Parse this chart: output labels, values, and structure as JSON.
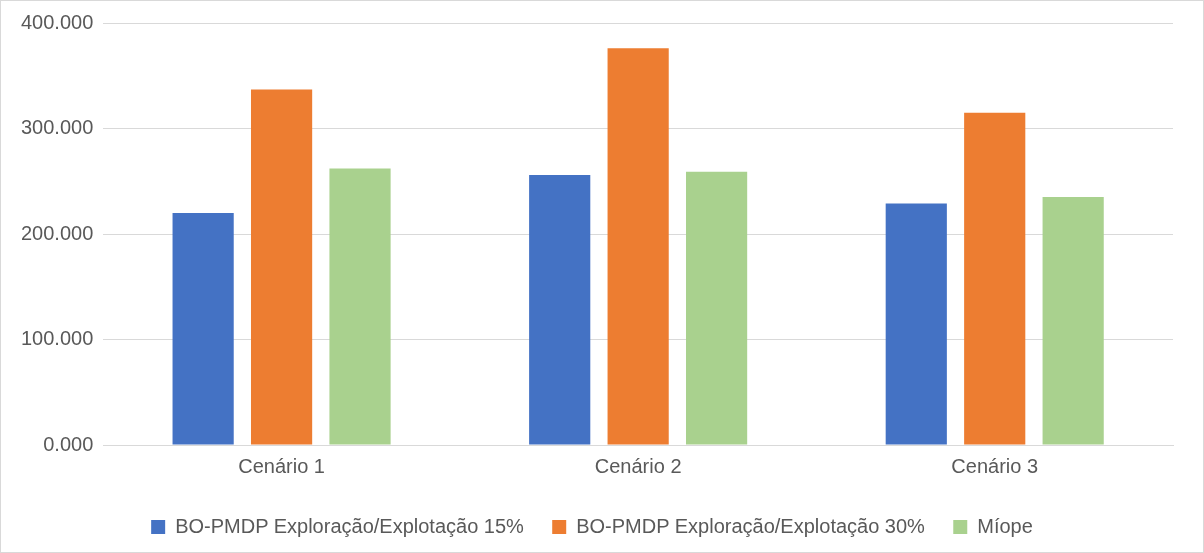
{
  "chart_data": {
    "type": "bar",
    "categories": [
      "Cenário 1",
      "Cenário 2",
      "Cenário 3"
    ],
    "series": [
      {
        "name": "BO-PMDP Exploração/Explotação 15%",
        "color": "#4472c4",
        "values": [
          220,
          256,
          229
        ]
      },
      {
        "name": "BO-PMDP Exploração/Explotação 30%",
        "color": "#ed7d31",
        "values": [
          337,
          376,
          315
        ]
      },
      {
        "name": "Míope",
        "color": "#a9d18e",
        "values": [
          262,
          259,
          235
        ]
      }
    ],
    "ylim": [
      0,
      400
    ],
    "yticks": [
      {
        "value": 0,
        "label": "0.000"
      },
      {
        "value": 100,
        "label": "100.000"
      },
      {
        "value": 200,
        "label": "200.000"
      },
      {
        "value": 300,
        "label": "300.000"
      },
      {
        "value": 400,
        "label": "400.000"
      }
    ],
    "grid": "y",
    "legend": "bottom"
  }
}
